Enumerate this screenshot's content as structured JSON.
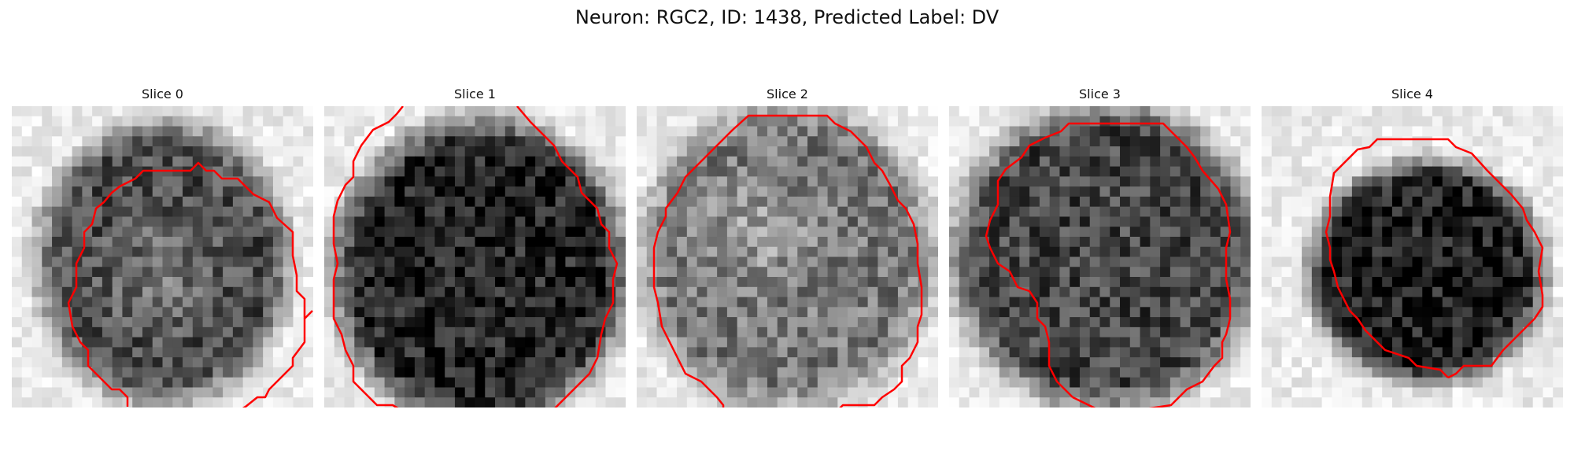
{
  "figure": {
    "title": "Neuron: RGC2, ID: 1438, Predicted Label: DV",
    "panels": [
      {
        "title": "Slice 0",
        "seed": 11,
        "darkness": 0.62,
        "center": [
          0.5,
          0.52
        ],
        "radius": [
          0.43,
          0.48
        ],
        "bright_region": [
          0.48,
          0.55
        ]
      },
      {
        "title": "Slice 1",
        "seed": 23,
        "darkness": 0.78,
        "center": [
          0.52,
          0.55
        ],
        "radius": [
          0.5,
          0.52
        ],
        "bright_region": null
      },
      {
        "title": "Slice 2",
        "seed": 37,
        "darkness": 0.45,
        "center": [
          0.5,
          0.5
        ],
        "radius": [
          0.5,
          0.52
        ],
        "bright_region": [
          0.4,
          0.42
        ]
      },
      {
        "title": "Slice 3",
        "seed": 41,
        "darkness": 0.65,
        "center": [
          0.52,
          0.5
        ],
        "radius": [
          0.52,
          0.52
        ],
        "bright_region": null
      },
      {
        "title": "Slice 4",
        "seed": 53,
        "darkness": 0.8,
        "center": [
          0.55,
          0.55
        ],
        "radius": [
          0.4,
          0.38
        ],
        "bright_region": null
      }
    ],
    "contour_color": "#ff0000"
  }
}
